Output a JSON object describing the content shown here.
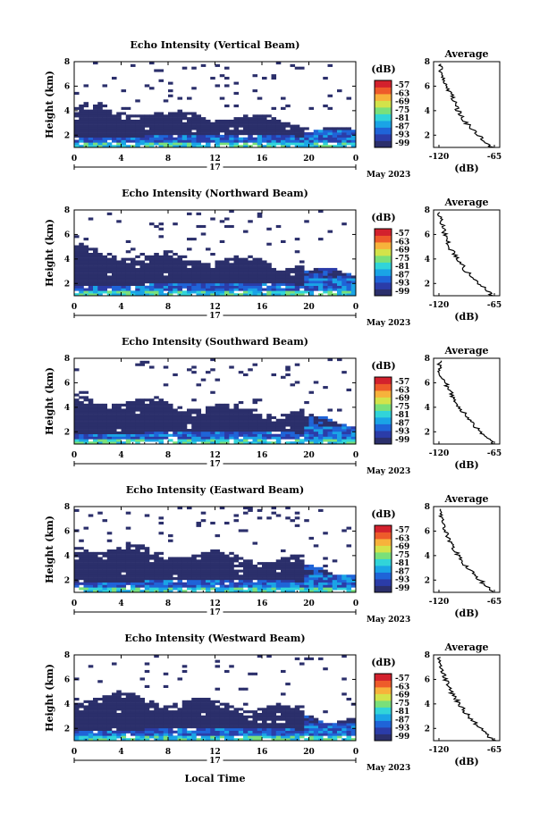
{
  "figure": {
    "xlabel": "Local Time",
    "x_ticks": [
      "0",
      "4",
      "8",
      "12",
      "16",
      "20",
      "0"
    ],
    "day_label": "17",
    "date_label": "May 2023",
    "y_ticks": [
      "2",
      "4",
      "6",
      "8"
    ],
    "ylabel": "Height (km)",
    "colorbar_unit": "(dB)",
    "colorbar_ticks": [
      "-57",
      "-63",
      "-69",
      "-75",
      "-81",
      "-87",
      "-93",
      "-99"
    ],
    "avg_title": "Average",
    "avg_xlabel": "(dB)",
    "avg_x_ticks": [
      "-120",
      "-65"
    ],
    "avg_y_ticks": [
      "2",
      "4",
      "6",
      "8"
    ]
  },
  "colors": {
    "colormap": [
      "#2b2f6b",
      "#2b3ca8",
      "#1f64d8",
      "#1aa4e6",
      "#31d4d9",
      "#7ae07a",
      "#d3e34a",
      "#f7b23b",
      "#ee5b2a",
      "#d3212d"
    ],
    "background_no_echo": "#ffffff"
  },
  "chart_data": [
    {
      "type": "heatmap",
      "title": "Echo Intensity (Vertical Beam)",
      "x_range_hours": [
        0,
        24
      ],
      "y_range_km": [
        1,
        8
      ],
      "color_range_dB": [
        -99,
        -57
      ],
      "avg_profile": {
        "heights_km": [
          1,
          2,
          3,
          4,
          5,
          6,
          7,
          7.8
        ],
        "dB": [
          -68,
          -80,
          -93,
          -101,
          -106,
          -112,
          -117,
          -120
        ]
      }
    },
    {
      "type": "heatmap",
      "title": "Echo Intensity (Northward Beam)",
      "x_range_hours": [
        0,
        24
      ],
      "y_range_km": [
        1,
        8
      ],
      "color_range_dB": [
        -99,
        -57
      ],
      "avg_profile": {
        "heights_km": [
          1,
          2,
          3,
          4,
          5,
          6,
          7,
          7.8
        ],
        "dB": [
          -67,
          -80,
          -93,
          -101,
          -110,
          -114,
          -118,
          -120
        ]
      }
    },
    {
      "type": "heatmap",
      "title": "Echo Intensity (Southward Beam)",
      "x_range_hours": [
        0,
        24
      ],
      "y_range_km": [
        1,
        8
      ],
      "color_range_dB": [
        -99,
        -57
      ],
      "avg_profile": {
        "heights_km": [
          1,
          2,
          3,
          4,
          5,
          6,
          7,
          7.8
        ],
        "dB": [
          -66,
          -79,
          -90,
          -100,
          -107,
          -114,
          -119,
          -120
        ]
      }
    },
    {
      "type": "heatmap",
      "title": "Echo Intensity (Eastward Beam)",
      "x_range_hours": [
        0,
        24
      ],
      "y_range_km": [
        1,
        8
      ],
      "color_range_dB": [
        -99,
        -57
      ],
      "avg_profile": {
        "heights_km": [
          1,
          2,
          3,
          4,
          5,
          6,
          7,
          7.8
        ],
        "dB": [
          -67,
          -79,
          -92,
          -101,
          -108,
          -114,
          -118,
          -120
        ]
      }
    },
    {
      "type": "heatmap",
      "title": "Echo Intensity (Westward Beam)",
      "x_range_hours": [
        0,
        24
      ],
      "y_range_km": [
        1,
        8
      ],
      "color_range_dB": [
        -99,
        -57
      ],
      "avg_profile": {
        "heights_km": [
          1,
          2,
          3,
          4,
          5,
          6,
          7,
          7.8
        ],
        "dB": [
          -66,
          -79,
          -91,
          -100,
          -108,
          -114,
          -118,
          -120
        ]
      }
    }
  ]
}
